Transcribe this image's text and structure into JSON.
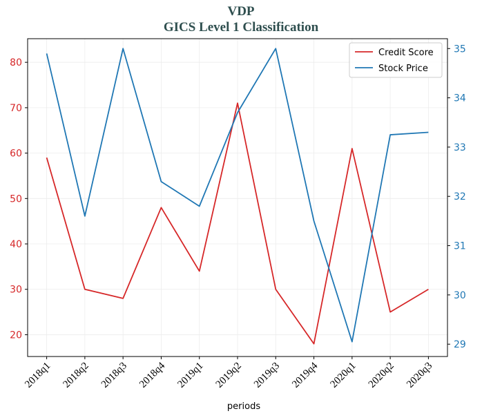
{
  "chart_data": {
    "type": "line",
    "title": "VDP",
    "subtitle": "GICS Level 1 Classification",
    "xlabel": "periods",
    "categories": [
      "2018q1",
      "2018q2",
      "2018q3",
      "2018q4",
      "2019q1",
      "2019q2",
      "2019q3",
      "2019q4",
      "2020q1",
      "2020q2",
      "2020q3"
    ],
    "series": [
      {
        "name": "Credit Score",
        "axis": "left",
        "color": "#d62728",
        "values": [
          59,
          30,
          28,
          48,
          34,
          71,
          30,
          18,
          61,
          25,
          30
        ]
      },
      {
        "name": "Stock Price",
        "axis": "right",
        "color": "#1f77b4",
        "values": [
          34.9,
          31.6,
          35.0,
          32.3,
          31.8,
          33.7,
          35.0,
          31.5,
          29.05,
          33.25,
          33.3
        ]
      }
    ],
    "y_left": {
      "ticks": [
        20,
        30,
        40,
        50,
        60,
        70,
        80
      ],
      "ylim": [
        15.2,
        85.2
      ],
      "color": "#d62728"
    },
    "y_right": {
      "ticks": [
        29,
        30,
        31,
        32,
        33,
        34,
        35
      ],
      "ylim": [
        28.75,
        35.2
      ],
      "color": "#1f77b4"
    },
    "grid": true,
    "legend_position": "top-right"
  }
}
